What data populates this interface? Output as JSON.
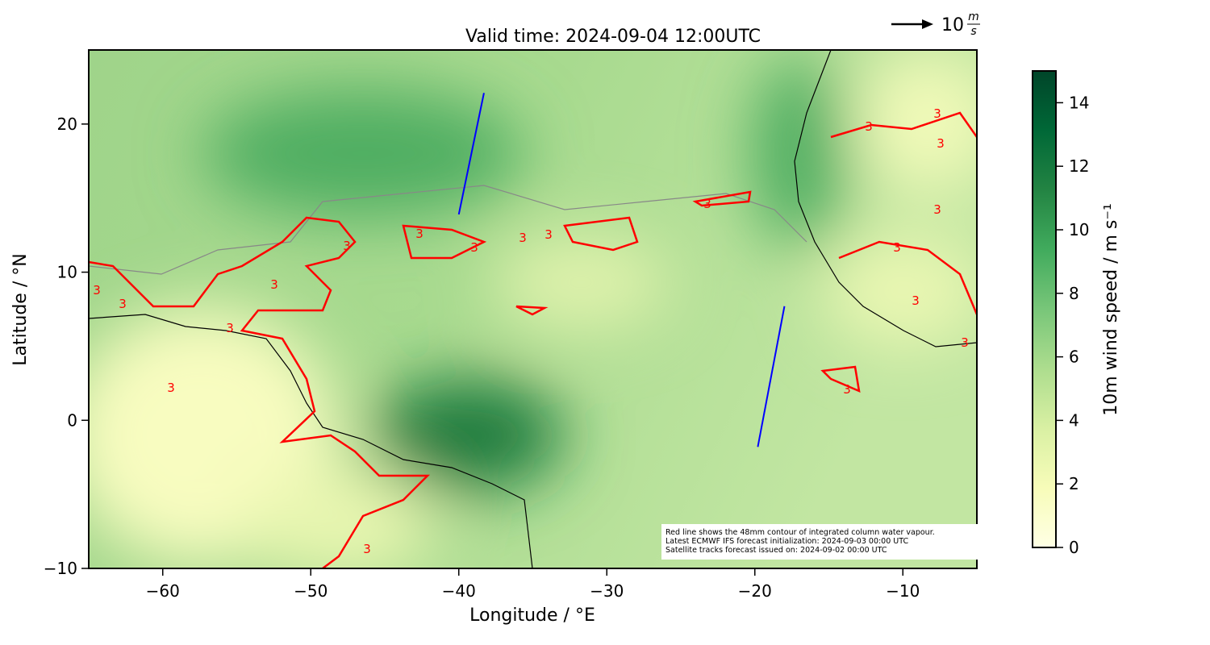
{
  "chart_data": {
    "type": "map",
    "title": "Valid time: 2024-09-04 12:00UTC",
    "x_label": "Longitude / °E",
    "y_label": "Latitude / °N",
    "xlim": [
      -65,
      -5
    ],
    "ylim": [
      -10,
      25
    ],
    "xticks": [
      {
        "value": -60,
        "label": "−60"
      },
      {
        "value": -50,
        "label": "−50"
      },
      {
        "value": -40,
        "label": "−40"
      },
      {
        "value": -30,
        "label": "−30"
      },
      {
        "value": -20,
        "label": "−20"
      },
      {
        "value": -10,
        "label": "−10"
      }
    ],
    "yticks": [
      {
        "value": -10,
        "label": "−10"
      },
      0,
      10,
      20
    ],
    "colorbar": {
      "label": "10m wind speed / m s⁻¹",
      "lim": [
        0,
        15
      ],
      "ticks": [
        0,
        2,
        4,
        6,
        8,
        10,
        12,
        14
      ],
      "colors": [
        "#ffffe5",
        "#f7fcb9",
        "#d9f0a3",
        "#addd8e",
        "#78c679",
        "#41ab5d",
        "#238443",
        "#006837",
        "#004529"
      ]
    },
    "contour_level": 3,
    "tracks": [
      {
        "color": "#0000ff",
        "lon": [
          -40.0,
          -38.3
        ],
        "lat": [
          13.9,
          22.1
        ]
      },
      {
        "color": "#0000ff",
        "lon": [
          -19.8,
          -18.0
        ],
        "lat": [
          -1.8,
          7.7
        ]
      }
    ],
    "quiver_key": {
      "value": 10,
      "unit_top": "m",
      "unit_bottom": "s"
    },
    "notes": [
      "Red line shows the 48mm contour of integrated column water vapour.",
      "Latest ECMWF IFS forecast initialization: 2024-09-03 00:00 UTC",
      "Satellite tracks forecast issued on: 2024-09-02 00:00 UTC"
    ]
  }
}
